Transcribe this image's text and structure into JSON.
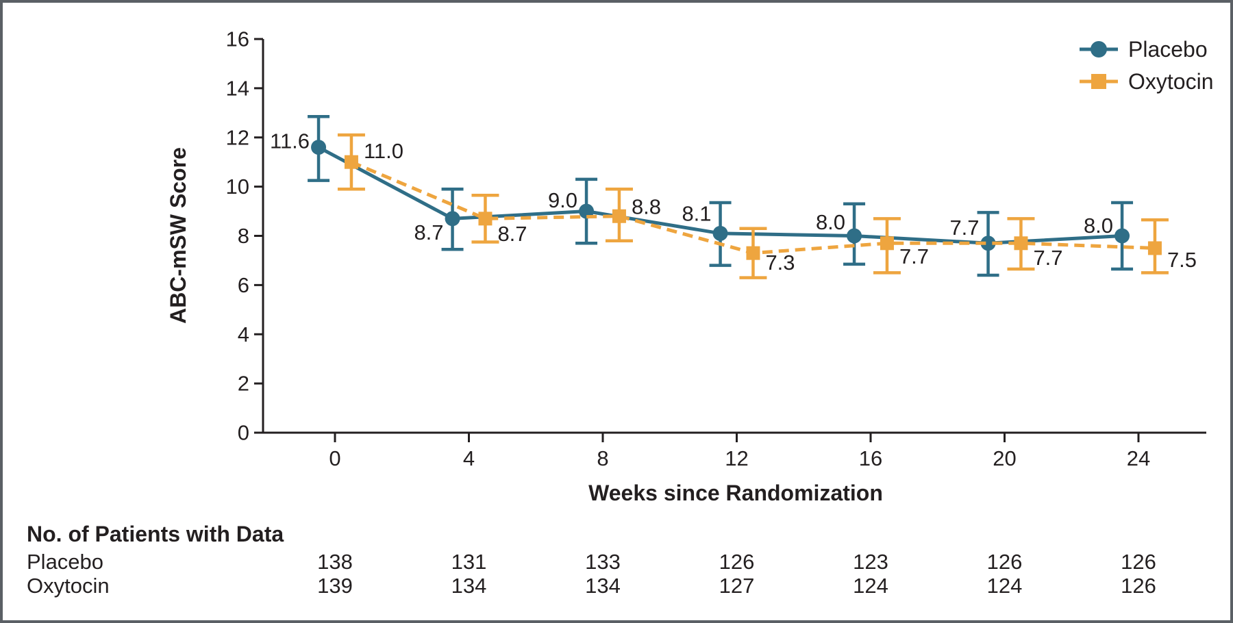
{
  "figure": {
    "frame_border_color": "#5b6065",
    "background_color": "#ffffff",
    "axis_color": "#231f20"
  },
  "chart_data": {
    "type": "line",
    "x": [
      0,
      4,
      8,
      12,
      16,
      20,
      24
    ],
    "xlabel": "Weeks since Randomization",
    "ylabel": "ABC-mSW Score",
    "ylim": [
      0,
      16
    ],
    "ytick_step": 2,
    "grid": false,
    "legend_position": "top-right",
    "error_bars": true,
    "series": [
      {
        "name": "Placebo",
        "color": "#2f6e87",
        "marker": "circle",
        "line": "solid",
        "x_offset_weeks": -0.49,
        "values": [
          11.6,
          8.7,
          9.0,
          8.1,
          8.0,
          7.7,
          8.0
        ],
        "error_low": [
          10.25,
          7.45,
          7.7,
          6.8,
          6.85,
          6.4,
          6.65
        ],
        "error_high": [
          12.85,
          9.9,
          10.3,
          9.35,
          9.3,
          8.95,
          9.35
        ],
        "label_side": "left",
        "label_dy": [
          -9,
          20,
          -16,
          -29,
          -20,
          -23,
          -15
        ]
      },
      {
        "name": "Oxytocin",
        "color": "#eea53f",
        "marker": "square",
        "line": "dashed",
        "x_offset_weeks": 0.49,
        "values": [
          11.0,
          8.7,
          8.8,
          7.3,
          7.7,
          7.7,
          7.5
        ],
        "error_low": [
          9.9,
          7.75,
          7.8,
          6.3,
          6.5,
          6.65,
          6.5
        ],
        "error_high": [
          12.1,
          9.65,
          9.9,
          8.3,
          8.7,
          8.7,
          8.65
        ],
        "label_side": "right",
        "label_dy": [
          -16,
          22,
          -14,
          14,
          19,
          21,
          17
        ]
      }
    ]
  },
  "patients_table": {
    "header": "No. of Patients with Data",
    "rows": [
      {
        "label": "Placebo",
        "values": [
          138,
          131,
          133,
          126,
          123,
          126,
          126
        ]
      },
      {
        "label": "Oxytocin",
        "values": [
          139,
          134,
          134,
          127,
          124,
          124,
          126
        ]
      }
    ]
  }
}
